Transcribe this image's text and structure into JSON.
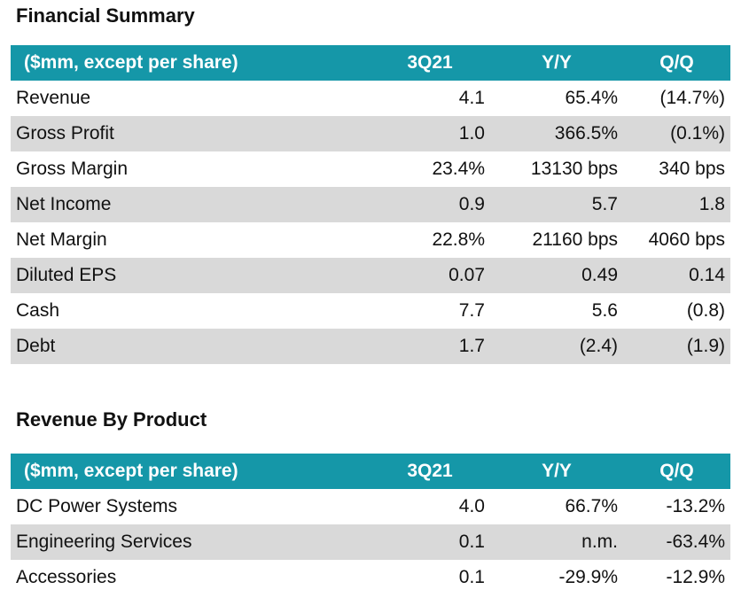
{
  "financial_summary": {
    "title": "Financial Summary",
    "headers": [
      "($mm, except per share)",
      "3Q21",
      "Y/Y",
      "Q/Q"
    ],
    "rows": [
      {
        "label": "Revenue",
        "q": "4.1",
        "yy": "65.4%",
        "qq": "(14.7%)"
      },
      {
        "label": "Gross Profit",
        "q": "1.0",
        "yy": "366.5%",
        "qq": "(0.1%)"
      },
      {
        "label": "Gross Margin",
        "q": "23.4%",
        "yy": "13130 bps",
        "qq": "340 bps"
      },
      {
        "label": "Net Income",
        "q": "0.9",
        "yy": "5.7",
        "qq": "1.8"
      },
      {
        "label": "Net Margin",
        "q": "22.8%",
        "yy": "21160 bps",
        "qq": "4060 bps"
      },
      {
        "label": "Diluted EPS",
        "q": "0.07",
        "yy": "0.49",
        "qq": "0.14"
      },
      {
        "label": "Cash",
        "q": "7.7",
        "yy": "5.6",
        "qq": "(0.8)"
      },
      {
        "label": "Debt",
        "q": "1.7",
        "yy": "(2.4)",
        "qq": "(1.9)"
      }
    ]
  },
  "revenue_by_product": {
    "title": "Revenue By Product",
    "headers": [
      "($mm, except per share)",
      "3Q21",
      "Y/Y",
      "Q/Q"
    ],
    "rows": [
      {
        "label": "DC Power Systems",
        "q": "4.0",
        "yy": "66.7%",
        "qq": "-13.2%"
      },
      {
        "label": "Engineering Services",
        "q": "0.1",
        "yy": "n.m.",
        "qq": "-63.4%"
      },
      {
        "label": "Accessories",
        "q": "0.1",
        "yy": "-29.9%",
        "qq": "-12.9%"
      }
    ]
  },
  "colors": {
    "header_bg": "#1597a8",
    "header_text": "#ffffff",
    "stripe": "#d9d9d9"
  }
}
